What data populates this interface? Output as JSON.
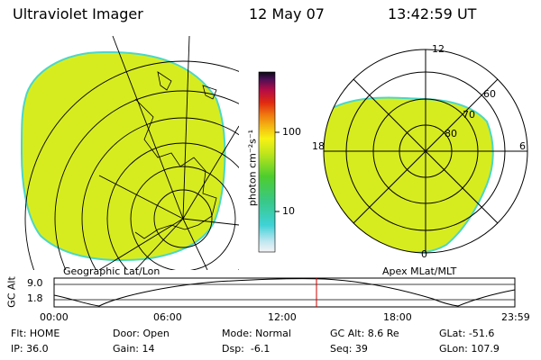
{
  "header": {
    "title": "Ultraviolet Imager",
    "date": "12 May 07",
    "time": "13:42:59 UT"
  },
  "colorbar": {
    "unit_label": "photon cm⁻²s⁻¹",
    "tick_100": "100",
    "tick_10": "10"
  },
  "left_image": {
    "caption": "Geographic Lat/Lon"
  },
  "right_image": {
    "caption": "Apex MLat/MLT",
    "mlt_labels": {
      "top": "12",
      "left": "18",
      "right": "6",
      "bottom": "0"
    },
    "mlat_labels": {
      "lat60": "60",
      "lat70": "70",
      "lat80": "80"
    }
  },
  "altitude_plot": {
    "ylabel": "GC Alt",
    "ytick_top": "9.0",
    "ytick_mid": "1.8",
    "x_ticks": [
      "00:00",
      "06:00",
      "12:00",
      "18:00",
      "23:59"
    ]
  },
  "status": {
    "row1": {
      "flt": "Flt: HOME",
      "door": "Door: Open",
      "mode": "Mode: Normal",
      "gcalt": "GC Alt: 8.6 Re",
      "glat": "GLat: -51.6"
    },
    "row2": {
      "ip": "IP: 36.0",
      "gain": "Gain: 14",
      "dsp": "Dsp:  -6.1",
      "seq": "Seq: 39",
      "glon": "GLon: 107.9"
    }
  },
  "colors": {
    "emission": "#d7ec1f",
    "emission_edge": "#4bd7c6",
    "marker": "#cc0000"
  }
}
